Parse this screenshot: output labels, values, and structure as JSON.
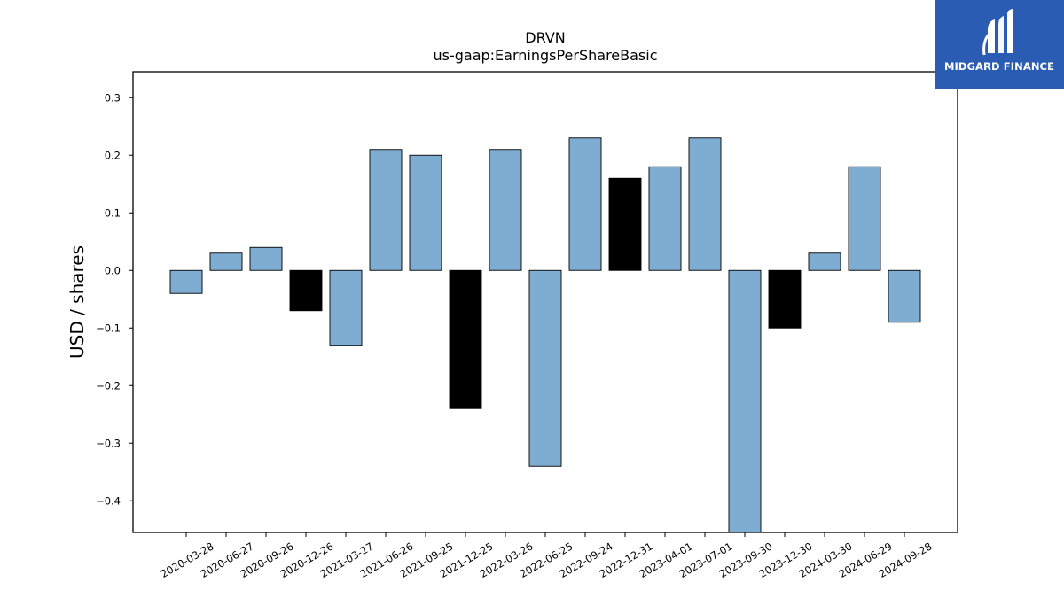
{
  "chart_data": {
    "type": "bar",
    "title": "DRVN",
    "subtitle": "us-gaap:EarningsPerShareBasic",
    "xlabel": "",
    "ylabel": "USD / shares",
    "ylim": [
      -0.455,
      0.345
    ],
    "yticks": [
      0.3,
      0.2,
      0.1,
      0.0,
      -0.1,
      -0.2,
      -0.3,
      -0.4
    ],
    "ytick_labels": [
      "0.3",
      "0.2",
      "0.1",
      "0.0",
      "−0.1",
      "−0.2",
      "−0.3",
      "−0.4"
    ],
    "categories": [
      "2020-03-28",
      "2020-06-27",
      "2020-09-26",
      "2020-12-26",
      "2021-03-27",
      "2021-06-26",
      "2021-09-25",
      "2021-12-25",
      "2022-03-26",
      "2022-06-25",
      "2022-09-24",
      "2022-12-31",
      "2023-04-01",
      "2023-07-01",
      "2023-09-30",
      "2023-12-30",
      "2024-03-30",
      "2024-06-29",
      "2024-09-28"
    ],
    "values": [
      -0.04,
      0.03,
      0.04,
      -0.07,
      -0.13,
      0.21,
      0.2,
      -0.24,
      0.21,
      -0.34,
      0.23,
      0.16,
      0.18,
      0.23,
      -0.46,
      -0.1,
      0.03,
      0.18,
      -0.09
    ],
    "highlight": [
      false,
      false,
      false,
      true,
      false,
      false,
      false,
      true,
      false,
      false,
      false,
      true,
      false,
      false,
      false,
      true,
      false,
      false,
      false
    ],
    "colors": {
      "bar": "#7eadd1",
      "highlight": "#000000",
      "edge": "#000000"
    },
    "grid": false,
    "legend": "none"
  },
  "logo": {
    "text": "MIDGARD FINANCE",
    "bg": "#2a5cb3",
    "name": "midgard-finance-logo"
  }
}
